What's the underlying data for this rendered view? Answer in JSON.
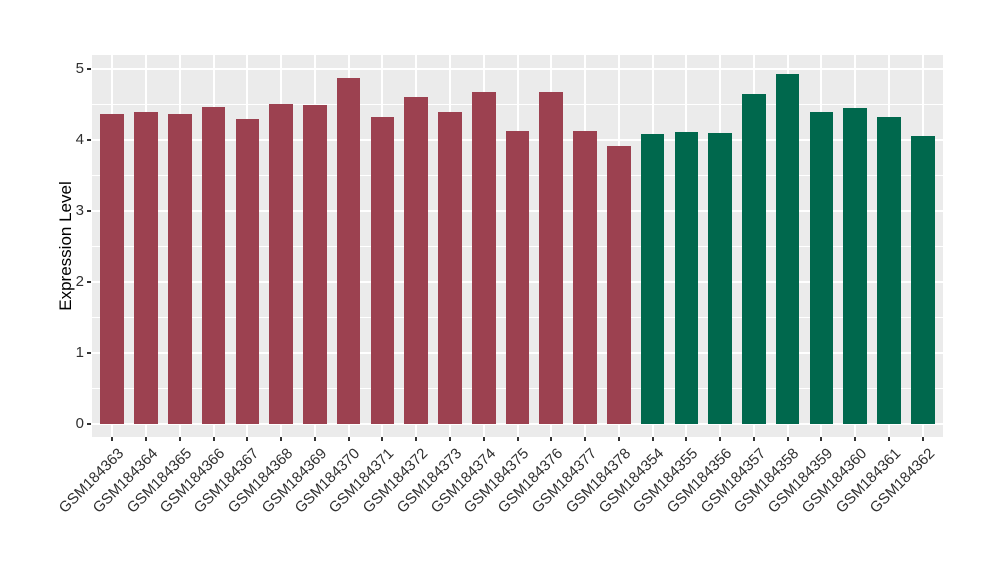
{
  "chart_data": {
    "type": "bar",
    "title": "",
    "xlabel": "",
    "ylabel": "Expression Level",
    "ylim": [
      0,
      5
    ],
    "yticks": [
      0,
      1,
      2,
      3,
      4,
      5
    ],
    "grid": true,
    "legend": false,
    "panel_background": "#EBEBEB",
    "gridline_color": "#FFFFFF",
    "tick_mark_color": "#333333",
    "tick_label_color": "#303030",
    "axis_title_color": "#000000",
    "group_colors": {
      "group1": "#9C4150",
      "group2": "#00684D"
    },
    "bars": [
      {
        "label": "GSM184363",
        "value": 4.36,
        "group": "group1"
      },
      {
        "label": "GSM184364",
        "value": 4.4,
        "group": "group1"
      },
      {
        "label": "GSM184365",
        "value": 4.36,
        "group": "group1"
      },
      {
        "label": "GSM184366",
        "value": 4.46,
        "group": "group1"
      },
      {
        "label": "GSM184367",
        "value": 4.29,
        "group": "group1"
      },
      {
        "label": "GSM184368",
        "value": 4.51,
        "group": "group1"
      },
      {
        "label": "GSM184369",
        "value": 4.49,
        "group": "group1"
      },
      {
        "label": "GSM184370",
        "value": 4.87,
        "group": "group1"
      },
      {
        "label": "GSM184371",
        "value": 4.33,
        "group": "group1"
      },
      {
        "label": "GSM184372",
        "value": 4.61,
        "group": "group1"
      },
      {
        "label": "GSM184373",
        "value": 4.4,
        "group": "group1"
      },
      {
        "label": "GSM184374",
        "value": 4.68,
        "group": "group1"
      },
      {
        "label": "GSM184375",
        "value": 4.13,
        "group": "group1"
      },
      {
        "label": "GSM184376",
        "value": 4.67,
        "group": "group1"
      },
      {
        "label": "GSM184377",
        "value": 4.13,
        "group": "group1"
      },
      {
        "label": "GSM184378",
        "value": 3.92,
        "group": "group1"
      },
      {
        "label": "GSM184354",
        "value": 4.08,
        "group": "group2"
      },
      {
        "label": "GSM184355",
        "value": 4.11,
        "group": "group2"
      },
      {
        "label": "GSM184356",
        "value": 4.1,
        "group": "group2"
      },
      {
        "label": "GSM184357",
        "value": 4.65,
        "group": "group2"
      },
      {
        "label": "GSM184358",
        "value": 4.93,
        "group": "group2"
      },
      {
        "label": "GSM184359",
        "value": 4.4,
        "group": "group2"
      },
      {
        "label": "GSM184360",
        "value": 4.45,
        "group": "group2"
      },
      {
        "label": "GSM184361",
        "value": 4.32,
        "group": "group2"
      },
      {
        "label": "GSM184362",
        "value": 4.06,
        "group": "group2"
      }
    ]
  }
}
